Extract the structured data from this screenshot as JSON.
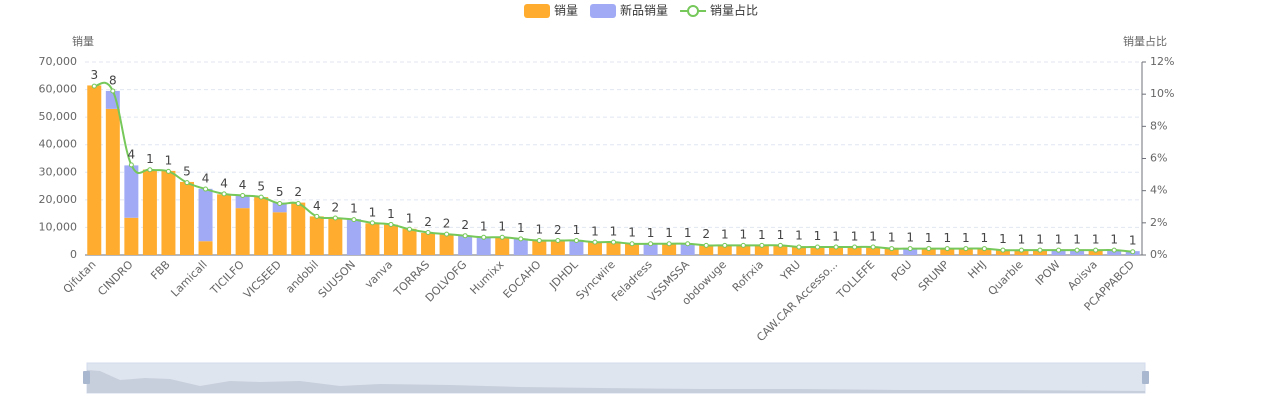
{
  "chart_data": {
    "type": "bar_line",
    "categories": [
      "Qifutan",
      null,
      "CINDRO",
      null,
      "FBB",
      null,
      "Lamicall",
      null,
      "TICILFO",
      null,
      "VICSEED",
      null,
      "andobil",
      null,
      "SUUSON",
      null,
      "vanva",
      null,
      "TORRAS",
      null,
      "DOLVOFG",
      null,
      "Humixx",
      null,
      "EOCAHO",
      null,
      "JDHDL",
      null,
      "Syncwire",
      null,
      "Feladress",
      null,
      "VSSMSSA",
      null,
      "obdowuge",
      null,
      "Rofrxia",
      null,
      "YRU",
      null,
      "CAW.CAR Accesso...",
      null,
      "TOLLEFE",
      null,
      "PGU",
      null,
      "SRUNP",
      null,
      "HHJ",
      null,
      "Quarble",
      null,
      "IPOW",
      null,
      "Aoisva",
      null,
      "PCAPPABCD"
    ],
    "series": [
      {
        "name": "销量",
        "color": "#ffac2f",
        "values": [
          61500,
          53000,
          13500,
          31000,
          30500,
          26500,
          5000,
          22000,
          17000,
          21000,
          15500,
          19000,
          14000,
          13500,
          0,
          11500,
          11000,
          9500,
          8000,
          7500,
          0,
          0,
          6500,
          0,
          5500,
          5000,
          0,
          4800,
          4500,
          4300,
          0,
          4000,
          0,
          3800,
          3700,
          3600,
          3500,
          3400,
          3200,
          3000,
          2900,
          2800,
          2700,
          2600,
          0,
          2400,
          2300,
          2200,
          2100,
          2000,
          1900,
          1800,
          0,
          0,
          1600,
          0,
          0
        ]
      },
      {
        "name": "新品销量",
        "color": "#a1abf5",
        "values": [
          0,
          6500,
          19000,
          0,
          0,
          0,
          19000,
          0,
          4500,
          0,
          3500,
          0,
          0,
          0,
          13000,
          0,
          0,
          0,
          0,
          0,
          7000,
          6500,
          0,
          6000,
          0,
          0,
          5000,
          0,
          0,
          0,
          4200,
          0,
          3900,
          0,
          0,
          0,
          0,
          0,
          0,
          0,
          0,
          0,
          0,
          0,
          2500,
          0,
          0,
          0,
          0,
          0,
          0,
          0,
          1700,
          1600,
          0,
          1500,
          1400
        ]
      },
      {
        "name": "销量占比",
        "color": "#76c85a",
        "axis": "y2",
        "values": [
          10.5,
          10.2,
          5.6,
          5.3,
          5.2,
          4.5,
          4.1,
          3.8,
          3.7,
          3.6,
          3.2,
          3.2,
          2.4,
          2.3,
          2.2,
          2.0,
          1.9,
          1.6,
          1.4,
          1.3,
          1.2,
          1.1,
          1.1,
          1.0,
          0.9,
          0.9,
          0.9,
          0.8,
          0.8,
          0.7,
          0.7,
          0.7,
          0.7,
          0.6,
          0.6,
          0.6,
          0.6,
          0.6,
          0.5,
          0.5,
          0.5,
          0.5,
          0.5,
          0.4,
          0.4,
          0.4,
          0.4,
          0.4,
          0.4,
          0.3,
          0.3,
          0.3,
          0.3,
          0.3,
          0.3,
          0.3,
          0.2
        ]
      }
    ],
    "top_labels": [
      3,
      8,
      4,
      1,
      1,
      5,
      4,
      4,
      4,
      5,
      5,
      2,
      4,
      2,
      1,
      1,
      1,
      1,
      2,
      2,
      2,
      1,
      1,
      1,
      1,
      2,
      1,
      1,
      1,
      1,
      1,
      1,
      1,
      2,
      1,
      1,
      1,
      1,
      1,
      1,
      1,
      1,
      1,
      1,
      1,
      1,
      1,
      1,
      1,
      1,
      1,
      1,
      1,
      1,
      1,
      1,
      1
    ],
    "ylabel": "销量",
    "y2label": "销量占比",
    "ylim": [
      0,
      70000
    ],
    "yticks": [
      0,
      {
        "value": 10000,
        "label": "10,000"
      },
      {
        "value": 20000,
        "label": "20,000"
      },
      {
        "value": 30000,
        "label": "30,000"
      },
      {
        "value": 40000,
        "label": "40,000"
      },
      {
        "value": 50000,
        "label": "50,000"
      },
      {
        "value": 60000,
        "label": "60,000"
      },
      {
        "value": 70000,
        "label": "70,000"
      }
    ],
    "y2lim": [
      0,
      12
    ],
    "y2ticks": [
      {
        "value": 0,
        "label": "0%"
      },
      {
        "value": 2,
        "label": "2%"
      },
      {
        "value": 4,
        "label": "4%"
      },
      {
        "value": 6,
        "label": "6%"
      },
      {
        "value": 8,
        "label": "8%"
      },
      {
        "value": 10,
        "label": "10%"
      },
      {
        "value": 12,
        "label": "12%"
      }
    ],
    "grid": true
  }
}
